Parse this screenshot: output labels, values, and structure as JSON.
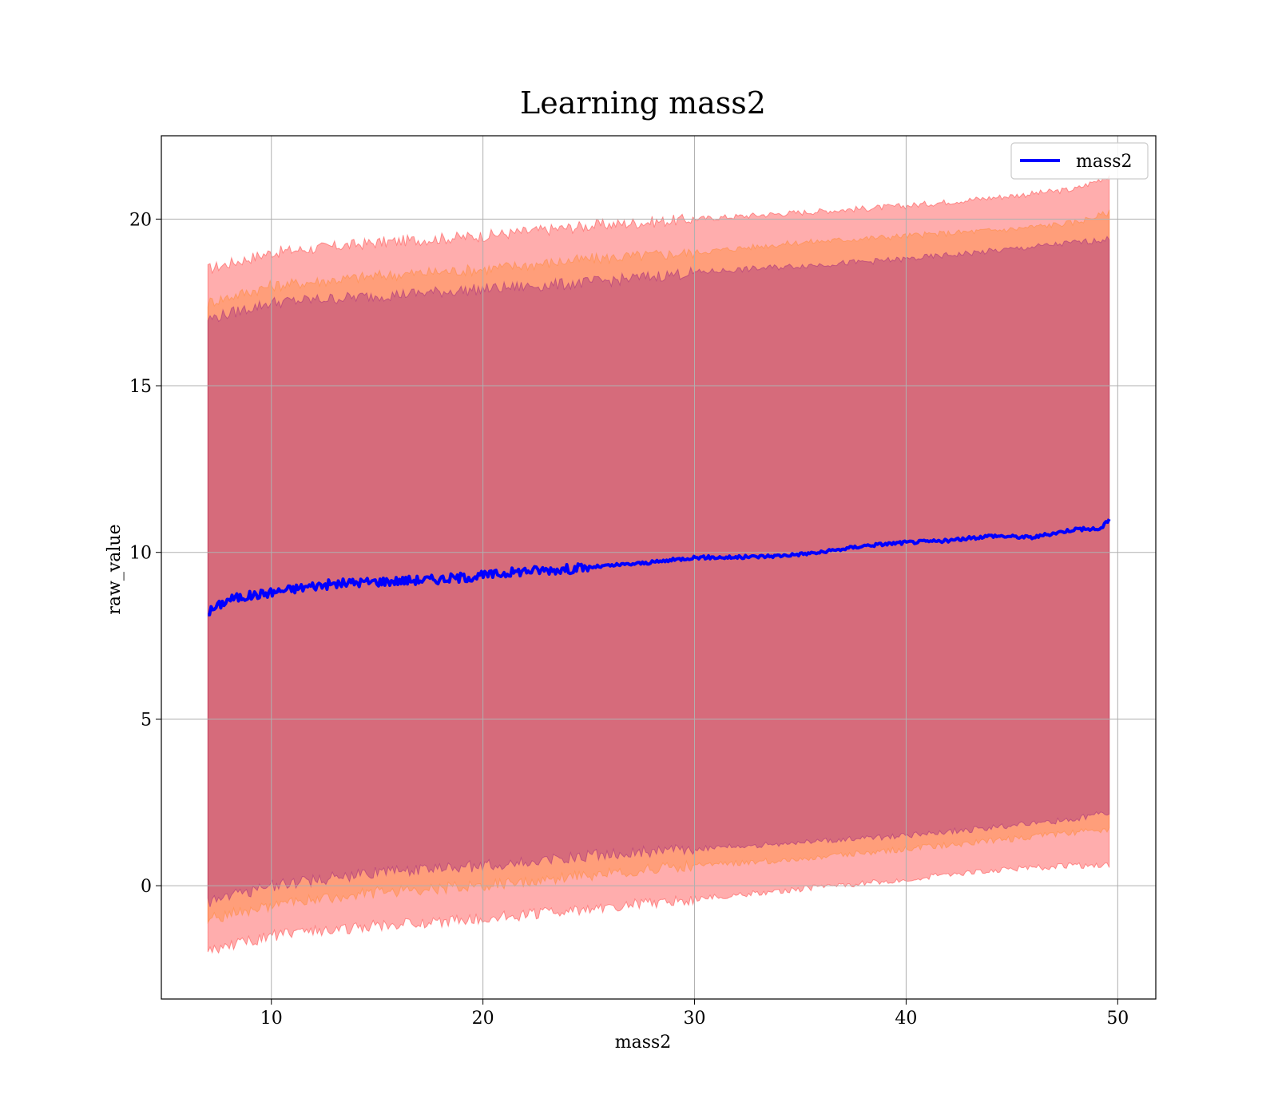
{
  "chart_data": {
    "type": "line",
    "title": "Learning mass2",
    "xlabel": "mass2",
    "ylabel": "raw_value",
    "xlim": [
      4.8,
      51.8
    ],
    "ylim": [
      -3.4,
      22.5
    ],
    "xticks": [
      10,
      20,
      30,
      40,
      50
    ],
    "yticks": [
      0,
      5,
      10,
      15,
      20
    ],
    "grid": true,
    "legend_position": "top-right",
    "colors": {
      "line": "#0000ff",
      "band_outer": "#ff0000",
      "band_middle": "#ff7f0e",
      "band_inner": "#800080",
      "grid": "#b0b0b0"
    },
    "series": [
      {
        "name": "mass2",
        "x": [
          7,
          8,
          10,
          12,
          14,
          16,
          18,
          20,
          22,
          24,
          26,
          28,
          30,
          32,
          34,
          36,
          38,
          40,
          42,
          44,
          46,
          48,
          49.2,
          49.6
        ],
        "y": [
          8.2,
          8.6,
          8.8,
          9.0,
          9.1,
          9.15,
          9.2,
          9.3,
          9.45,
          9.5,
          9.6,
          9.7,
          9.85,
          9.85,
          9.9,
          10.0,
          10.2,
          10.3,
          10.35,
          10.5,
          10.45,
          10.7,
          10.7,
          11.0
        ]
      }
    ],
    "bands": [
      {
        "x": [
          7,
          10,
          15,
          20,
          25,
          30,
          35,
          40,
          45,
          48,
          49.6
        ],
        "upper": [
          18.5,
          19.0,
          19.3,
          19.5,
          19.8,
          20.0,
          20.2,
          20.4,
          20.7,
          20.9,
          21.3
        ],
        "lower": [
          -2.0,
          -1.5,
          -1.2,
          -1.0,
          -0.7,
          -0.4,
          -0.1,
          0.2,
          0.5,
          0.6,
          0.6
        ]
      },
      {
        "x": [
          7,
          10,
          15,
          20,
          25,
          30,
          35,
          40,
          45,
          48,
          49.6
        ],
        "upper": [
          17.5,
          18.0,
          18.3,
          18.5,
          18.8,
          19.0,
          19.3,
          19.5,
          19.7,
          19.9,
          20.2
        ],
        "lower": [
          -1.0,
          -0.6,
          -0.2,
          0.0,
          0.3,
          0.6,
          0.8,
          1.1,
          1.4,
          1.6,
          1.7
        ]
      },
      {
        "x": [
          7,
          10,
          15,
          20,
          25,
          30,
          35,
          40,
          45,
          48,
          49.6
        ],
        "upper": [
          17.0,
          17.5,
          17.7,
          17.9,
          18.1,
          18.4,
          18.6,
          18.8,
          19.1,
          19.3,
          19.4
        ],
        "lower": [
          -0.5,
          0.0,
          0.4,
          0.6,
          0.9,
          1.1,
          1.3,
          1.5,
          1.8,
          2.0,
          2.2
        ]
      }
    ]
  }
}
